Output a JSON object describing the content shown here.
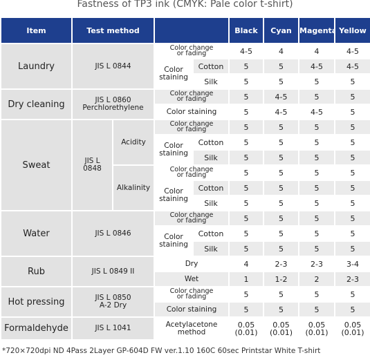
{
  "title": "Fastness of TP3 ink (CMYK: Pale color t-shirt)",
  "header": [
    "Item",
    "Test method",
    "Black",
    "Cyan",
    "Magenta",
    "Yellow"
  ],
  "sections": [
    {
      "item": "Laundry",
      "method": "JIS L 0844",
      "tests": [
        {
          "condition": "Color change\nor fading",
          "values": [
            "4-5",
            "4",
            "4",
            "4-5"
          ]
        },
        {
          "condition": "Color\nstaining",
          "fabrics": [
            {
              "name": "Cotton",
              "values": [
                "5",
                "5",
                "4-5",
                "4-5"
              ]
            },
            {
              "name": "Silk",
              "values": [
                "5",
                "5",
                "5",
                "5"
              ]
            }
          ]
        }
      ]
    },
    {
      "item": "Dry cleaning",
      "method": "JIS L 0860\nPerchlorethylene",
      "tests": [
        {
          "condition": "Color change\nor fading",
          "values": [
            "5",
            "4-5",
            "5",
            "5"
          ]
        },
        {
          "condition": "Color staining",
          "values": [
            "5",
            "4-5",
            "4-5",
            "5"
          ]
        }
      ]
    },
    {
      "item": "Sweat",
      "method": "JIS L\n0848",
      "groups": [
        {
          "name": "Acidity",
          "tests": [
            {
              "condition": "Color change\nor fading",
              "values": [
                "5",
                "5",
                "5",
                "5"
              ]
            },
            {
              "condition": "Color\nstaining",
              "fabrics": [
                {
                  "name": "Cotton",
                  "values": [
                    "5",
                    "5",
                    "5",
                    "5"
                  ]
                },
                {
                  "name": "Silk",
                  "values": [
                    "5",
                    "5",
                    "5",
                    "5"
                  ]
                }
              ]
            }
          ]
        },
        {
          "name": "Alkalinity",
          "tests": [
            {
              "condition": "Color change\nor fading",
              "values": [
                "5",
                "5",
                "5",
                "5"
              ]
            },
            {
              "condition": "Color\nstaining",
              "fabrics": [
                {
                  "name": "Cotton",
                  "values": [
                    "5",
                    "5",
                    "5",
                    "5"
                  ]
                },
                {
                  "name": "Silk",
                  "values": [
                    "5",
                    "5",
                    "5",
                    "5"
                  ]
                }
              ]
            }
          ]
        }
      ]
    },
    {
      "item": "Water",
      "method": "JIS L 0846",
      "tests": [
        {
          "condition": "Color change\nor fading",
          "values": [
            "5",
            "5",
            "5",
            "5"
          ]
        },
        {
          "condition": "Color\nstaining",
          "fabrics": [
            {
              "name": "Cotton",
              "values": [
                "5",
                "5",
                "5",
                "5"
              ]
            },
            {
              "name": "Silk",
              "values": [
                "5",
                "5",
                "5",
                "5"
              ]
            }
          ]
        }
      ]
    },
    {
      "item": "Rub",
      "method": "JIS L 0849 II",
      "tests": [
        {
          "condition": "Dry",
          "values": [
            "4",
            "2-3",
            "2-3",
            "3-4"
          ]
        },
        {
          "condition": "Wet",
          "values": [
            "1",
            "1-2",
            "2",
            "2-3"
          ]
        }
      ]
    },
    {
      "item": "Hot pressing",
      "method": "JIS L 0850\nA-2 Dry",
      "tests": [
        {
          "condition": "Color change\nor fading",
          "values": [
            "5",
            "5",
            "5",
            "5"
          ]
        },
        {
          "condition": "Color staining",
          "values": [
            "5",
            "5",
            "5",
            "5"
          ]
        }
      ]
    },
    {
      "item": "Formaldehyde",
      "method": "JIS L 1041",
      "tests": [
        {
          "condition": "Acetylacetone\nmethod",
          "values": [
            "0.05\n(0.01)",
            "0.05\n(0.01)",
            "0.05\n(0.01)",
            "0.05\n(0.01)"
          ]
        }
      ]
    }
  ],
  "footnote": "*720×720dpi ND 4Pass 2Layer GP-604D FW ver.1.10 160C 60sec Printstar White T-shirt"
}
